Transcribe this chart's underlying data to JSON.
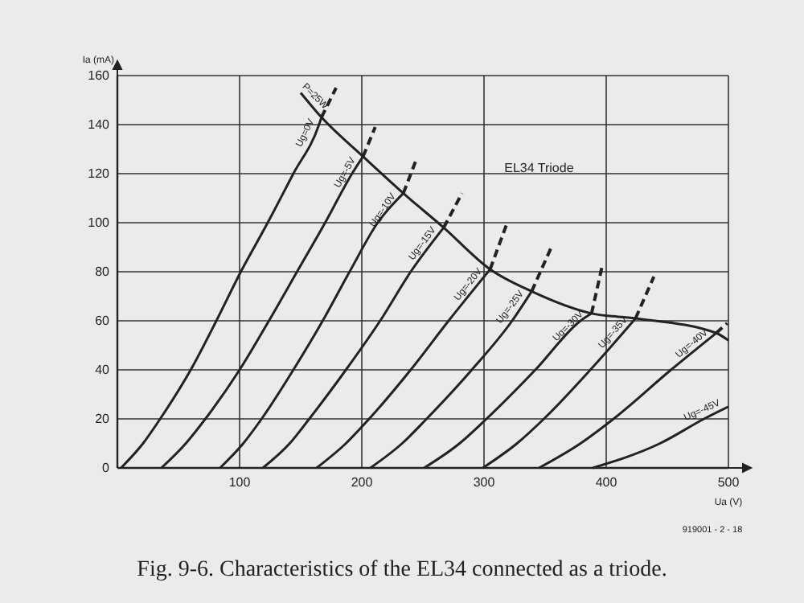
{
  "chart_data": {
    "type": "line",
    "title": "Fig. 9-6. Characteristics of the EL34 connected as a triode.",
    "xlabel": "Ua (V)",
    "ylabel": "Ia (mA)",
    "xlim": [
      0,
      500
    ],
    "ylim": [
      0,
      160
    ],
    "xticks": [
      {
        "value": 0,
        "label": null
      },
      100,
      200,
      300,
      400,
      500
    ],
    "yticks": [
      0,
      20,
      40,
      60,
      80,
      100,
      120,
      140,
      160
    ],
    "grid": true,
    "marker": "none",
    "line_style": "solid",
    "annotations": [
      "EL34 Triode",
      "919001 - 2 - 18",
      {
        "text": "P=25W",
        "x": 150,
        "y": 153
      }
    ],
    "series": [
      {
        "name": "Ug=0V",
        "color": "#222222",
        "x": [
          3,
          21,
          35,
          60,
          81,
          101,
          123,
          144,
          165,
          167
        ],
        "values": [
          0,
          10,
          20,
          40,
          60,
          80,
          100,
          120,
          140,
          143
        ]
      },
      {
        "name": "Ug=-5V",
        "color": "#222222",
        "x": [
          36,
          56,
          72,
          100,
          124,
          147,
          170,
          192,
          201
        ],
        "values": [
          0,
          10,
          20,
          40,
          60,
          80,
          100,
          120,
          127
        ]
      },
      {
        "name": "Ug=-10V",
        "color": "#222222",
        "x": [
          84,
          103,
          118,
          144,
          168,
          190,
          213,
          234
        ],
        "values": [
          0,
          10,
          20,
          40,
          60,
          80,
          100,
          112
        ]
      },
      {
        "name": "Ug=-15V",
        "color": "#222222",
        "x": [
          119,
          141,
          157,
          187,
          215,
          240,
          267
        ],
        "values": [
          0,
          10,
          20,
          40,
          60,
          80,
          98
        ]
      },
      {
        "name": "Ug=-20V",
        "color": "#222222",
        "x": [
          163,
          187,
          206,
          240,
          271,
          305
        ],
        "values": [
          0,
          10,
          20,
          40,
          60,
          81
        ]
      },
      {
        "name": "Ug=-25V",
        "color": "#222222",
        "x": [
          207,
          233,
          253,
          290,
          323,
          339
        ],
        "values": [
          0,
          10,
          20,
          40,
          60,
          72
        ]
      },
      {
        "name": "Ug=-30V",
        "color": "#222222",
        "x": [
          251,
          280,
          302,
          342,
          379,
          388
        ],
        "values": [
          0,
          10,
          20,
          40,
          60,
          63
        ]
      },
      {
        "name": "Ug=-35V",
        "color": "#222222",
        "x": [
          299,
          327,
          349,
          387,
          424
        ],
        "values": [
          0,
          10,
          20,
          40,
          61
        ]
      },
      {
        "name": "Ug=-40V",
        "color": "#222222",
        "x": [
          345,
          379,
          406,
          453,
          490
        ],
        "values": [
          0,
          10,
          20,
          40,
          55
        ]
      },
      {
        "name": "Ug=-45V",
        "color": "#222222",
        "x": [
          389,
          444,
          480,
          500
        ],
        "values": [
          0,
          10,
          20,
          25
        ]
      },
      {
        "color": "#222222",
        "line_style": "dashed",
        "x": [
          167,
          179
        ],
        "values": [
          143,
          155
        ]
      },
      {
        "color": "#222222",
        "line_style": "dashed",
        "x": [
          201,
          211
        ],
        "values": [
          127,
          139
        ]
      },
      {
        "color": "#222222",
        "line_style": "dashed",
        "x": [
          234,
          244
        ],
        "values": [
          112,
          125
        ]
      },
      {
        "color": "#222222",
        "line_style": "dashed",
        "x": [
          267,
          282
        ],
        "values": [
          98,
          112
        ]
      },
      {
        "color": "#222222",
        "line_style": "dashed",
        "x": [
          305,
          319
        ],
        "values": [
          81,
          100
        ]
      },
      {
        "color": "#222222",
        "line_style": "dashed",
        "x": [
          339,
          356
        ],
        "values": [
          72,
          91
        ]
      },
      {
        "color": "#222222",
        "line_style": "dashed",
        "x": [
          388,
          397
        ],
        "values": [
          63,
          83
        ]
      },
      {
        "color": "#222222",
        "line_style": "dashed",
        "x": [
          424,
          439
        ],
        "values": [
          61,
          78
        ]
      },
      {
        "color": "#222222",
        "line_style": "dashed",
        "x": [
          490,
          499
        ],
        "values": [
          55,
          59
        ]
      },
      {
        "color": "#222222",
        "x": [
          150,
          167,
          201,
          234,
          267,
          305,
          339,
          388,
          424,
          490,
          500
        ],
        "values": [
          153,
          143,
          127,
          112,
          98,
          81,
          72,
          63,
          61,
          55,
          52
        ]
      }
    ]
  }
}
